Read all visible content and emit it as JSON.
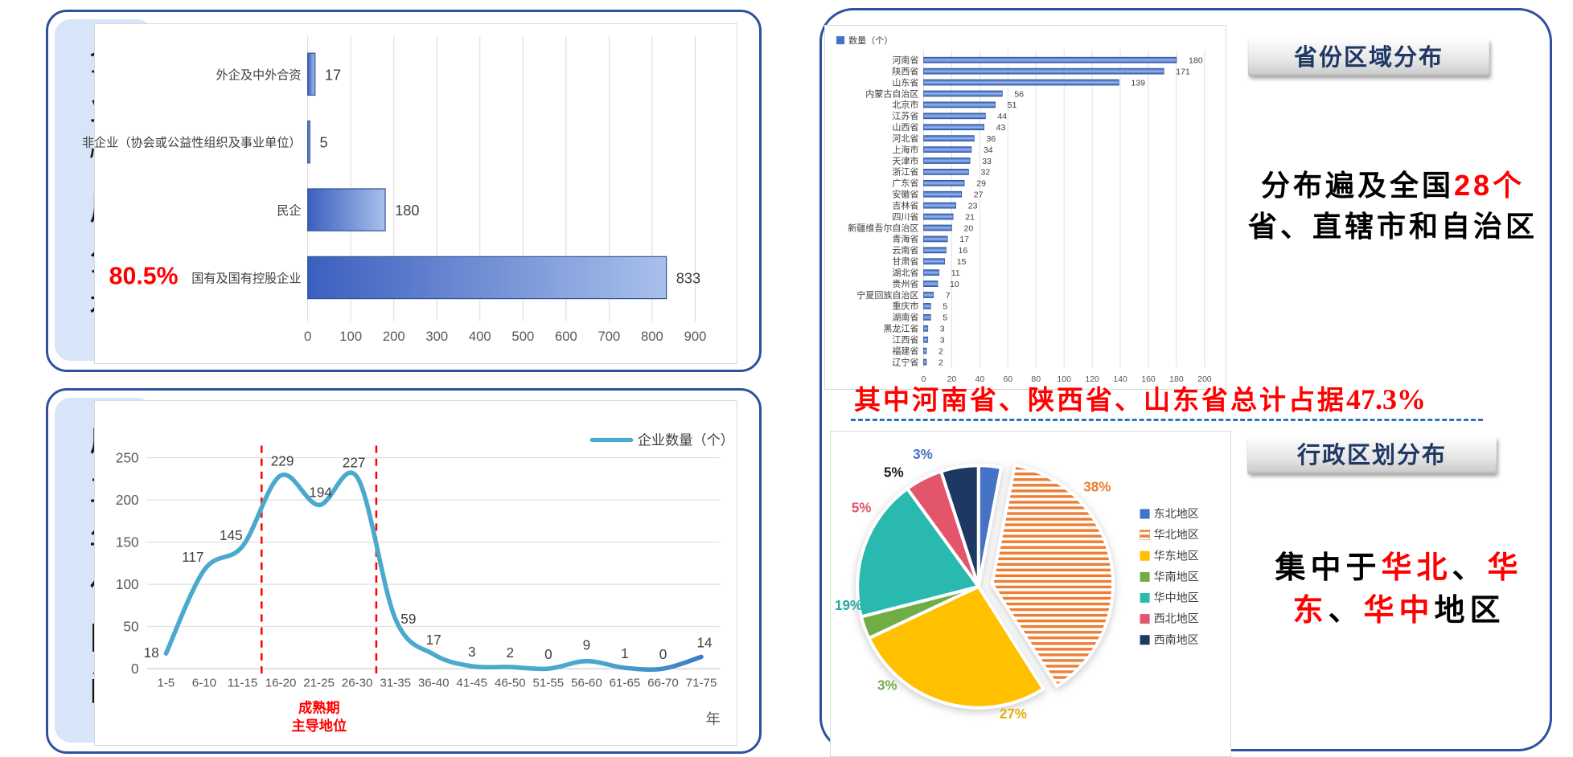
{
  "panels": {
    "p1": {
      "side_title": "企业性质分布"
    },
    "p2": {
      "side_title": "成立年份区间"
    },
    "right": {
      "banner_province": "省份区域分布",
      "summary": {
        "pre": "分布遍及全国",
        "highlight": "28个",
        "line2": "省、直辖市和自治区"
      },
      "headline": {
        "text": "其中河南省、陕西省、山东省总计占据",
        "value": "47.3%"
      },
      "banner_region": "行政区划分布",
      "focus": {
        "f1": "集中于",
        "f2": "华北",
        "f3": "、",
        "f4": "华",
        "f5": "东",
        "f6": "、",
        "f7": "华中",
        "f8": "地区"
      }
    }
  },
  "chart_data": [
    {
      "type": "bar",
      "orientation": "horizontal",
      "title": "企业性质分布",
      "categories": [
        "外企及中外合资",
        "非企业（协会或公益性组织及事业单位）",
        "民企",
        "国有及国有控股企业"
      ],
      "values": [
        17,
        5,
        180,
        833
      ],
      "xlim": [
        0,
        900
      ],
      "xtick_step": 100,
      "grid": true,
      "bar_color_gradient": [
        "#3B5FBF",
        "#A9C0EB"
      ],
      "bar_border": "#2E5396",
      "highlight_label": "80.5%",
      "highlight_color": "#FF0000"
    },
    {
      "type": "line",
      "legend": "企业数量（个）",
      "legend_position": "top-right",
      "line_color": "#4AA9CC",
      "line_color_end": "#3F7CC7",
      "categories": [
        "1-5",
        "6-10",
        "11-15",
        "16-20",
        "21-25",
        "26-30",
        "31-35",
        "36-40",
        "41-45",
        "46-50",
        "51-55",
        "56-60",
        "61-65",
        "66-70",
        "71-75"
      ],
      "values": [
        18,
        117,
        145,
        229,
        194,
        227,
        59,
        17,
        3,
        2,
        0,
        9,
        1,
        0,
        14
      ],
      "ylim": [
        0,
        250
      ],
      "ytick_step": 50,
      "grid": true,
      "xlabel": "年",
      "dashed_markers_after_category": [
        "11-15",
        "26-30"
      ],
      "marker_color": "#FF0000",
      "annotation": [
        "成熟期",
        "主导地位"
      ],
      "annotation_color": "#FF0000"
    },
    {
      "type": "bar",
      "orientation": "horizontal",
      "title": "省份区域分布",
      "legend": "数量（个）",
      "categories": [
        "河南省",
        "陕西省",
        "山东省",
        "内蒙古自治区",
        "北京市",
        "江苏省",
        "山西省",
        "河北省",
        "上海市",
        "天津市",
        "浙江省",
        "广东省",
        "安徽省",
        "吉林省",
        "四川省",
        "新疆维吾尔自治区",
        "青海省",
        "云南省",
        "甘肃省",
        "湖北省",
        "贵州省",
        "宁夏回族自治区",
        "重庆市",
        "湖南省",
        "黑龙江省",
        "江西省",
        "福建省",
        "辽宁省"
      ],
      "values": [
        180,
        171,
        139,
        56,
        51,
        44,
        43,
        36,
        34,
        33,
        32,
        29,
        27,
        23,
        21,
        20,
        17,
        16,
        15,
        11,
        10,
        7,
        5,
        5,
        3,
        3,
        2,
        2
      ],
      "xlim": [
        0,
        200
      ],
      "xtick_step": 20,
      "grid": true,
      "bar_color": "#4472C4"
    },
    {
      "type": "pie",
      "title": "行政区划分布",
      "labels": [
        "东北地区",
        "华北地区",
        "华东地区",
        "华南地区",
        "华中地区",
        "西北地区",
        "西南地区"
      ],
      "values": [
        3,
        38,
        27,
        3,
        19,
        5,
        5
      ],
      "colors": [
        "#4472C4",
        "#ED7D31",
        "#FFC000",
        "#70AD47",
        "#2CB9AE",
        "#E2556A",
        "#1F3864"
      ],
      "label_colors": [
        "#4472C4",
        "#ED7D31",
        "#E3AE00",
        "#70AD47",
        "#1FA99F",
        "#E2556A",
        "#1A1A1A"
      ],
      "striped_slice": "华北地区",
      "exploded_slice": "华北地区",
      "start_angle": "top",
      "direction": "clockwise",
      "legend_position": "right"
    }
  ]
}
